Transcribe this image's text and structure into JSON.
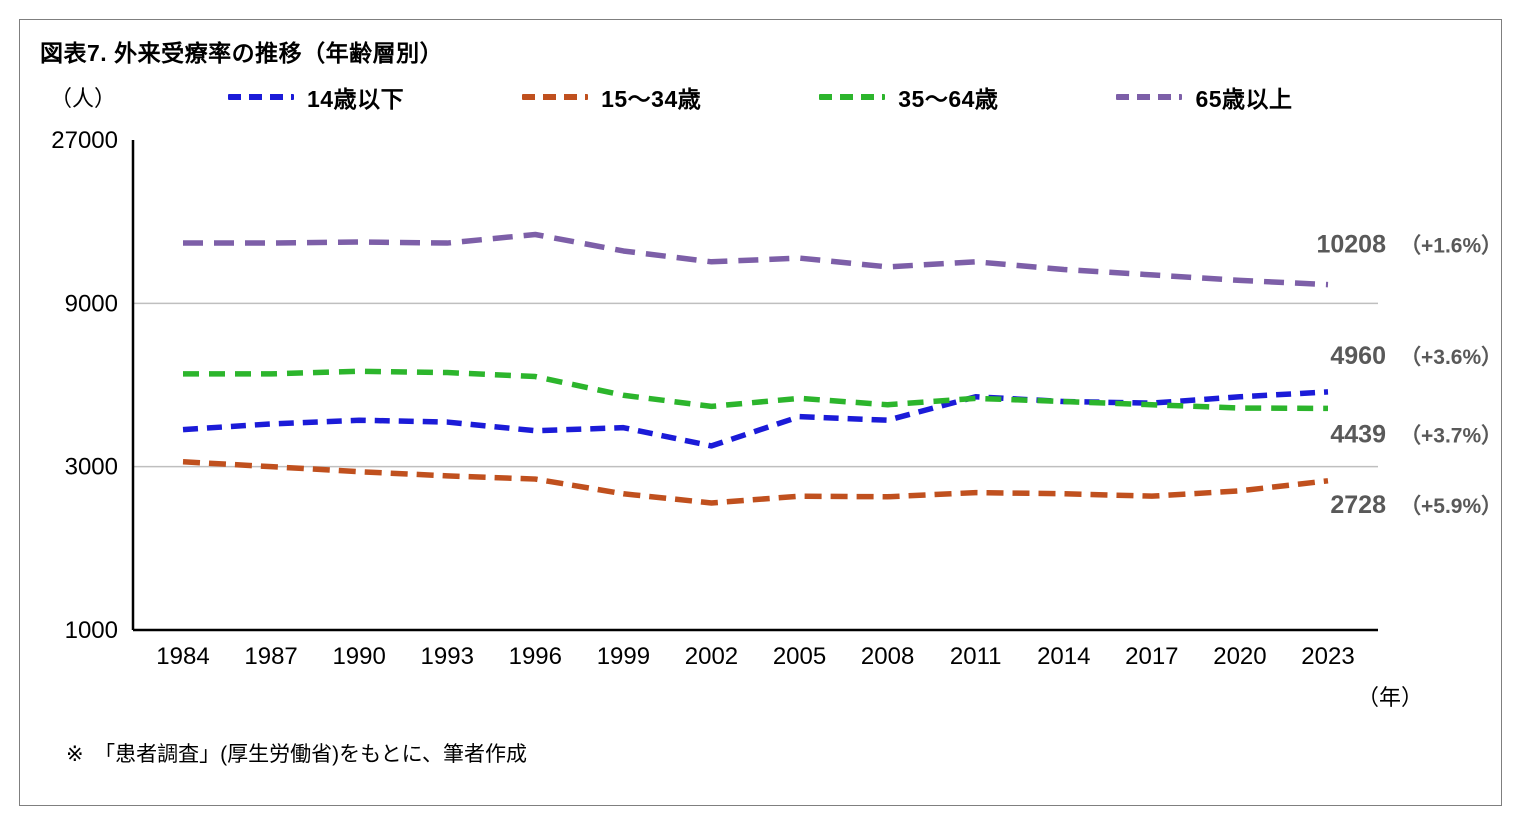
{
  "header": {
    "title": "図表7. 外来受療率の推移（年齢層別）"
  },
  "chart_data": {
    "type": "line",
    "title": "図表7. 外来受療率の推移（年齢層別）",
    "y_unit_label": "（人）",
    "x_unit_label": "（年）",
    "y_scale": "log",
    "ylim": [
      1000,
      27000
    ],
    "y_ticks": [
      27000,
      9000,
      3000,
      1000
    ],
    "x": [
      1984,
      1987,
      1990,
      1993,
      1996,
      1999,
      2002,
      2005,
      2008,
      2011,
      2014,
      2017,
      2020,
      2023
    ],
    "x_tick_labels": [
      "1984",
      "1987",
      "1990",
      "1993",
      "1996",
      "1999",
      "2002",
      "2005",
      "2008",
      "2011",
      "2014",
      "2017",
      "2020",
      "2023"
    ],
    "grid": "horizontal",
    "legend_position": "top",
    "series": [
      {
        "name": "14歳以下",
        "color": "#1b1bd8",
        "dash": "15 9",
        "values": [
          3850,
          4000,
          4100,
          4050,
          3820,
          3900,
          3450,
          4200,
          4100,
          4800,
          4650,
          4600,
          4800,
          4960
        ],
        "end_value_label": "4960",
        "end_pct_label": "（+3.6%）",
        "label_dy": -28
      },
      {
        "name": "15～34歳",
        "color": "#c0501e",
        "dash": "17 9",
        "values": [
          3100,
          3000,
          2900,
          2820,
          2760,
          2500,
          2350,
          2460,
          2450,
          2520,
          2500,
          2460,
          2550,
          2728
        ],
        "end_value_label": "2728",
        "end_pct_label": "（+5.9%）",
        "label_dy": 32
      },
      {
        "name": "35～64歳",
        "color": "#2cb52c",
        "dash": "16 10",
        "values": [
          5600,
          5600,
          5700,
          5650,
          5500,
          4850,
          4500,
          4750,
          4550,
          4750,
          4650,
          4550,
          4450,
          4439
        ],
        "end_value_label": "4439",
        "end_pct_label": "（+3.7%）",
        "label_dy": 34
      },
      {
        "name": "65歳以上",
        "color": "#7d5fa8",
        "dash": "20 11",
        "values": [
          13500,
          13500,
          13600,
          13500,
          14300,
          12800,
          11900,
          12200,
          11500,
          11900,
          11300,
          10900,
          10500,
          10208
        ],
        "end_value_label": "10208",
        "end_pct_label": "（+1.6%）",
        "label_dy": -32
      }
    ],
    "annotation_color": "#595959"
  },
  "footnote": "※　「患者調査」(厚生労働省)をもとに、筆者作成"
}
